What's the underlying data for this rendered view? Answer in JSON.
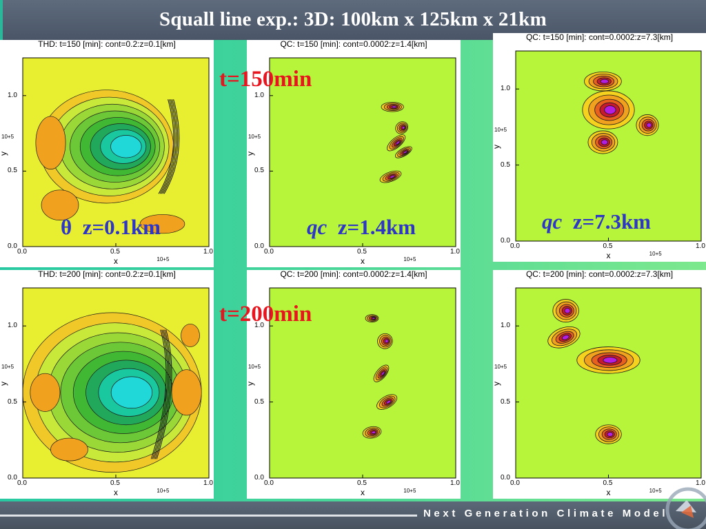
{
  "title": {
    "text": "Squall line exp.: 3D: 100km x 125km x 21km"
  },
  "footer": {
    "text": "Next Generation Climate Model"
  },
  "time_labels": {
    "t1": "t=150min",
    "t2": "t=200min"
  },
  "panels": {
    "thd150": {
      "title": "THD: t=150 [min]: cont=0.2:z=0.1[km]"
    },
    "qc150_low": {
      "title": "QC: t=150 [min]: cont=0.0002:z=1.4[km]"
    },
    "qc150_high": {
      "title": "QC: t=150 [min]: cont=0.0002:z=7.3[km]"
    },
    "thd200": {
      "title": "THD: t=200 [min]: cont=0.2:z=0.1[km]"
    },
    "qc200_low": {
      "title": "QC: t=200 [min]: cont=0.0002:z=1.4[km]"
    },
    "qc200_high": {
      "title": "QC: t=200 [min]: cont=0.0002:z=7.3[km]"
    }
  },
  "annotations": {
    "a1_sym": "θ",
    "a1_text": "z=0.1km",
    "a2_sym": "qc",
    "a2_text": "z=1.4km",
    "a3_sym": "qc",
    "a3_text": "z=7.3km"
  },
  "axes": {
    "xlabel": "x",
    "ylabel": "y",
    "exp": "10+5",
    "xticks": [
      "0.0",
      "0.5",
      "1.0"
    ],
    "yticks": [
      "0.0",
      "0.5",
      "1.0"
    ]
  },
  "colors": {
    "field": "#b6f53a",
    "title_bg": "#56626f",
    "time": "#e8141e",
    "label": "#2e36c6"
  }
}
